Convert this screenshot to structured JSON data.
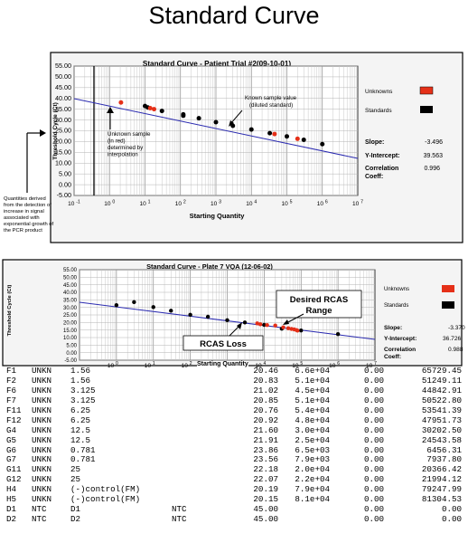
{
  "page_title": "Standard Curve",
  "chart_data": [
    {
      "type": "scatter",
      "title": "Standard Curve - Patient Trial #2(09-10-01)",
      "xlabel": "Starting Quantity",
      "ylabel": "Threshold Cycle (Ct)",
      "xscale": "log",
      "xlim": [
        0.1,
        10000000
      ],
      "ylim": [
        -5,
        55
      ],
      "yticks": [
        "55.00",
        "50.00",
        "45.00",
        "40.00",
        "35.00",
        "30.00",
        "25.00",
        "20.00",
        "15.00",
        "10.00",
        "5.00",
        "0.00",
        "-5.00"
      ],
      "xticks": [
        "10^-1",
        "10^0",
        "10^1",
        "10^2",
        "10^3",
        "10^4",
        "10^5",
        "10^6",
        "10^7"
      ],
      "legend": [
        "Unknowns",
        "Standards"
      ],
      "colors": {
        "unknown": "#e53018",
        "standard": "#000000",
        "line": "#2b2bb0"
      },
      "fit": {
        "slope": -3.496,
        "intercept": 39.563
      },
      "stats": [
        {
          "label": "Slope:",
          "value": "-3.496"
        },
        {
          "label": "Y-Intercept:",
          "value": "39.563"
        },
        {
          "label": "Correlation Coeff:",
          "value": "0.996"
        }
      ],
      "standards": [
        [
          10,
          36.5
        ],
        [
          12,
          35.8
        ],
        [
          30,
          34.2
        ],
        [
          120,
          32.6
        ],
        [
          120,
          32.0
        ],
        [
          330,
          30.8
        ],
        [
          1000,
          29.0
        ],
        [
          3000,
          27.3
        ],
        [
          10000,
          25.6
        ],
        [
          33000,
          23.9
        ],
        [
          100000,
          22.4
        ],
        [
          300000,
          20.8
        ],
        [
          1000000,
          18.8
        ]
      ],
      "unknowns": [
        [
          2.1,
          38.1
        ],
        [
          14,
          35.5
        ],
        [
          18,
          35.0
        ],
        [
          45000,
          23.5
        ],
        [
          200000,
          21.3
        ]
      ],
      "annotations": {
        "known": [
          "Known sample value",
          "(diluted standard)"
        ],
        "unknown": [
          "Unknown sample",
          "(in red)",
          "determined by",
          "interpolation"
        ],
        "quantities": [
          "Quantities derived",
          "from the detection of",
          "increase in signal",
          "associated with",
          "exponential growth of",
          "the PCR product"
        ]
      }
    },
    {
      "type": "scatter",
      "title": "Standard Curve - Plate 7 VQA (12-06-02)",
      "xlabel": "Starting Quantity",
      "ylabel": "Threshold Cycle (Ct)",
      "xscale": "log",
      "xlim": [
        0.1,
        10000000
      ],
      "ylim": [
        -5,
        55
      ],
      "yticks": [
        "55.00",
        "50.00",
        "45.00",
        "40.00",
        "35.00",
        "30.00",
        "25.00",
        "20.00",
        "15.00",
        "10.00",
        "5.00",
        "0.00",
        "-5.00"
      ],
      "xticks": [
        "10^0",
        "10^1",
        "10^2",
        "10^3",
        "10^4",
        "10^5",
        "10^6",
        "10^7"
      ],
      "legend": [
        "Unknowns",
        "Standards"
      ],
      "colors": {
        "unknown": "#e53018",
        "standard": "#000000",
        "line": "#2b2bb0"
      },
      "stats": [
        {
          "label": "Slope:",
          "value": "-3.370"
        },
        {
          "label": "Y-Intercept:",
          "value": "36.726"
        },
        {
          "label": "Correlation Coeff:",
          "value": "0.988"
        }
      ],
      "standards": [
        [
          1,
          31.5
        ],
        [
          3,
          33.5
        ],
        [
          10,
          30.2
        ],
        [
          30,
          27.8
        ],
        [
          100,
          25.1
        ],
        [
          300,
          23.8
        ],
        [
          1000,
          21.5
        ],
        [
          3000,
          20.0
        ],
        [
          10000,
          18.4
        ],
        [
          30000,
          15.9
        ],
        [
          100000,
          14.7
        ],
        [
          1000000,
          12.3
        ]
      ],
      "unknowns": [
        [
          6500,
          19.4
        ],
        [
          7900,
          18.8
        ],
        [
          12000,
          18.3
        ],
        [
          20000,
          18.0
        ],
        [
          33000,
          16.8
        ],
        [
          45000,
          16.2
        ],
        [
          55000,
          15.7
        ],
        [
          65000,
          15.4
        ],
        [
          75000,
          15.0
        ],
        [
          80000,
          14.6
        ]
      ],
      "annotations": {
        "desired": [
          "Desired RCAS",
          "Range"
        ],
        "loss": "RCAS Loss"
      }
    }
  ],
  "table": {
    "rows": [
      [
        "F1",
        "UNKN",
        "1.56",
        "",
        "20.46",
        "6.6e+04",
        "0.00",
        "65729.45"
      ],
      [
        "F2",
        "UNKN",
        "1.56",
        "",
        "20.83",
        "5.1e+04",
        "0.00",
        "51249.11"
      ],
      [
        "F6",
        "UNKN",
        "3.125",
        "",
        "21.02",
        "4.5e+04",
        "0.00",
        "44842.91"
      ],
      [
        "F7",
        "UNKN",
        "3.125",
        "",
        "20.85",
        "5.1e+04",
        "0.00",
        "50522.80"
      ],
      [
        "F11",
        "UNKN",
        "6.25",
        "",
        "20.76",
        "5.4e+04",
        "0.00",
        "53541.39"
      ],
      [
        "F12",
        "UNKN",
        "6.25",
        "",
        "20.92",
        "4.8e+04",
        "0.00",
        "47951.73"
      ],
      [
        "G4",
        "UNKN",
        "12.5",
        "",
        "21.60",
        "3.0e+04",
        "0.00",
        "30202.50"
      ],
      [
        "G5",
        "UNKN",
        "12.5",
        "",
        "21.91",
        "2.5e+04",
        "0.00",
        "24543.58"
      ],
      [
        "G6",
        "UNKN",
        "0.781",
        "",
        "23.86",
        "6.5e+03",
        "0.00",
        "6456.31"
      ],
      [
        "G7",
        "UNKN",
        "0.781",
        "",
        "23.56",
        "7.9e+03",
        "0.00",
        "7937.80"
      ],
      [
        "G11",
        "UNKN",
        "25",
        "",
        "22.18",
        "2.0e+04",
        "0.00",
        "20366.42"
      ],
      [
        "G12",
        "UNKN",
        "25",
        "",
        "22.07",
        "2.2e+04",
        "0.00",
        "21994.12"
      ],
      [
        "H4",
        "UNKN",
        "(-)control(FM)",
        "",
        "20.19",
        "7.9e+04",
        "0.00",
        "79247.99"
      ],
      [
        "H5",
        "UNKN",
        "(-)control(FM)",
        "",
        "20.15",
        "8.1e+04",
        "0.00",
        "81304.53"
      ],
      [
        "D1",
        "NTC",
        "D1",
        "NTC",
        "45.00",
        "",
        "0.00",
        "0.00"
      ],
      [
        "D2",
        "NTC",
        "D2",
        "NTC",
        "45.00",
        "",
        "0.00",
        "0.00"
      ]
    ]
  }
}
